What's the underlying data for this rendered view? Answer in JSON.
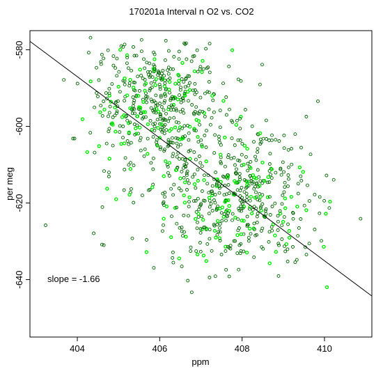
{
  "chart_data": {
    "type": "scatter",
    "title": "170201a   Interval n O2 vs. CO2",
    "xlabel": "ppm",
    "ylabel": "per meg",
    "xlim": [
      402.85,
      411.15
    ],
    "ylim": [
      -655.0,
      -575.0
    ],
    "x_ticks": [
      404,
      406,
      408,
      410
    ],
    "y_ticks": [
      -580,
      -600,
      -620,
      -640
    ],
    "annotation": "slope =  -1.66",
    "fit_line": {
      "slope": -1.66,
      "x": [
        402.85,
        411.15
      ],
      "y": [
        -577.8,
        -644.3
      ]
    },
    "grid": false,
    "legend": "none",
    "colors": {
      "dark_points": "#006400",
      "bright_points": "#00ee00",
      "fit_line": "#000000"
    },
    "cluster_centers": [
      {
        "x": 405.9,
        "y": -594,
        "sx": 0.75,
        "sy": 8,
        "n": 420
      },
      {
        "x": 407.9,
        "y": -619,
        "sx": 0.9,
        "sy": 9,
        "n": 440
      },
      {
        "x": 406.9,
        "y": -610,
        "sx": 1.6,
        "sy": 14,
        "n": 160
      }
    ]
  }
}
